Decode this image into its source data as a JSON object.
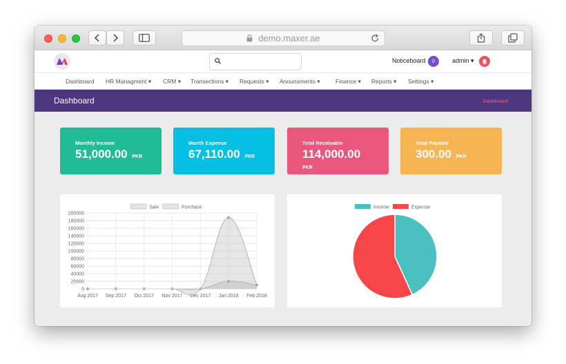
{
  "browser": {
    "url": "demo.maxer.ae"
  },
  "header": {
    "search_placeholder": "",
    "noticeboard_label": "Noticeboard",
    "noticeboard_count": "0",
    "user_label": "admin",
    "user_caret": "▾"
  },
  "nav": {
    "items": [
      {
        "label": "Dashboard"
      },
      {
        "label": "HR Managment ▾"
      },
      {
        "label": "CRM ▾"
      },
      {
        "label": "Transections ▾"
      },
      {
        "label": "Requests ▾"
      },
      {
        "label": "Anounsments ▾"
      },
      {
        "label": "Finance ▾"
      },
      {
        "label": "Reports ▾"
      },
      {
        "label": "Settings ▾"
      }
    ]
  },
  "banner": {
    "title": "Dashboard",
    "breadcrumb": "Dashboard"
  },
  "cards": [
    {
      "label": "Monthly Income",
      "value": "51,000.00",
      "currency": "PKR",
      "color": "#1fbc96"
    },
    {
      "label": "Month Expense",
      "value": "67,110.00",
      "currency": "PKR",
      "color": "#05c0e3"
    },
    {
      "label": "Total Receivable",
      "value": "114,000.00",
      "currency": "PKR",
      "color": "#ea577d"
    },
    {
      "label": "Total Payable",
      "value": "300.00",
      "currency": "PKR",
      "color": "#f6b552"
    }
  ],
  "colors": {
    "brand_purple": "#4c367f",
    "breadcrumb": "#f4637b",
    "notice_badge": "#7a4fc5",
    "admin_badge": "#f0515e"
  },
  "chart_data": [
    {
      "type": "area",
      "x": [
        "Aug 2017",
        "Sep 2017",
        "Oct 2017",
        "Nov 2017",
        "Dec 2017",
        "Jan 2018",
        "Feb 2018"
      ],
      "series": [
        {
          "name": "Sale",
          "values": [
            0,
            0,
            0,
            0,
            0,
            188000,
            10000
          ]
        },
        {
          "name": "Purchase",
          "values": [
            0,
            0,
            0,
            0,
            0,
            20000,
            10000
          ]
        }
      ],
      "ylim": [
        0,
        200000
      ],
      "yticks": [
        0,
        20000,
        40000,
        60000,
        80000,
        100000,
        120000,
        140000,
        160000,
        180000,
        200000
      ],
      "grid": true,
      "legend": "top"
    },
    {
      "type": "pie",
      "labels": [
        "Income",
        "Expense"
      ],
      "values": [
        51000,
        67110
      ],
      "colors": [
        "#4bc0c0",
        "#f7464a"
      ],
      "legend": "top"
    }
  ]
}
